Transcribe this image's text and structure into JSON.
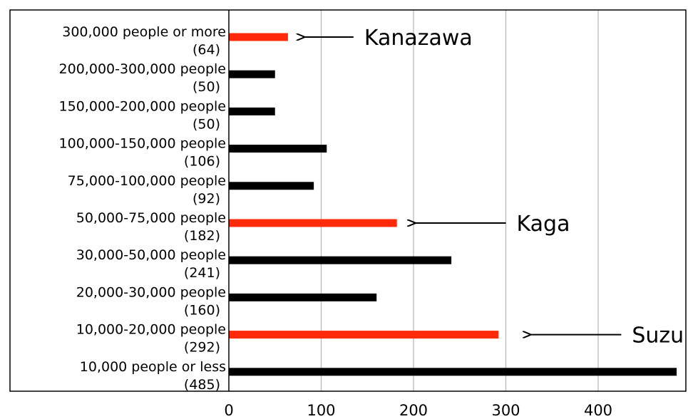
{
  "chart_data": {
    "type": "bar",
    "orientation": "horizontal",
    "categories": [
      "300,000 people or more",
      "200,000-300,000 people",
      "150,000-200,000 people",
      "100,000-150,000 people",
      "75,000-100,000 people",
      "50,000-75,000 people",
      "30,000-50,000 people",
      "20,000-30,000 people",
      "10,000-20,000 people",
      "10,000 people or less"
    ],
    "count_labels": [
      "(64)",
      "(50)",
      "(50)",
      "(106)",
      "(92)",
      "(182)",
      "(241)",
      "(160)",
      "(292)",
      "(485)"
    ],
    "values": [
      64,
      50,
      50,
      106,
      92,
      182,
      241,
      160,
      292,
      485
    ],
    "highlight": [
      true,
      false,
      false,
      false,
      false,
      true,
      false,
      false,
      true,
      false
    ],
    "xlim": [
      0,
      480
    ],
    "xticks": [
      0,
      100,
      200,
      300,
      400
    ],
    "xtick_labels": [
      "0",
      "100",
      "200",
      "300",
      "400"
    ],
    "grid": "vertical",
    "colors": {
      "bar": "#000000",
      "highlight": "#ff2a0a",
      "grid": "#b3b3b3",
      "frame": "#000000"
    },
    "annotations": [
      {
        "text": "Kanazawa",
        "category_index": 0,
        "arrow_from": 135,
        "arrow_to": 80
      },
      {
        "text": "Kaga",
        "category_index": 5,
        "arrow_from": 300,
        "arrow_to": 200
      },
      {
        "text": "Suzu",
        "category_index": 8,
        "arrow_from": 425,
        "arrow_to": 325
      }
    ]
  }
}
